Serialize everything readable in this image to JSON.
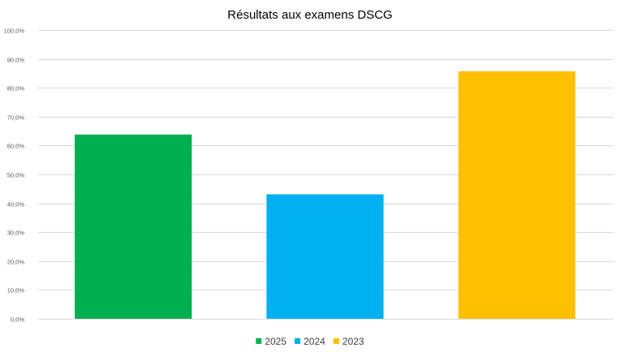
{
  "chart_data": {
    "type": "bar",
    "title": "Résultats aux examens DSCG",
    "xlabel": "",
    "ylabel": "",
    "categories": [
      "2025",
      "2024",
      "2023"
    ],
    "values": [
      63.8,
      43.1,
      85.7
    ],
    "colors": [
      "#00b050",
      "#00b0f0",
      "#ffc000"
    ],
    "ylim": [
      0,
      100
    ],
    "yticks": [
      0,
      10,
      20,
      30,
      40,
      50,
      60,
      70,
      80,
      90,
      100
    ],
    "ytick_labels": [
      "0,0%",
      "10,0%",
      "20,0%",
      "30,0%",
      "40,0%",
      "50,0%",
      "60,0%",
      "70,0%",
      "80,0%",
      "90,0%",
      "100,0%"
    ],
    "grid": true,
    "legend": {
      "placement": "bottom",
      "entries": [
        "2025",
        "2024",
        "2023"
      ]
    }
  }
}
